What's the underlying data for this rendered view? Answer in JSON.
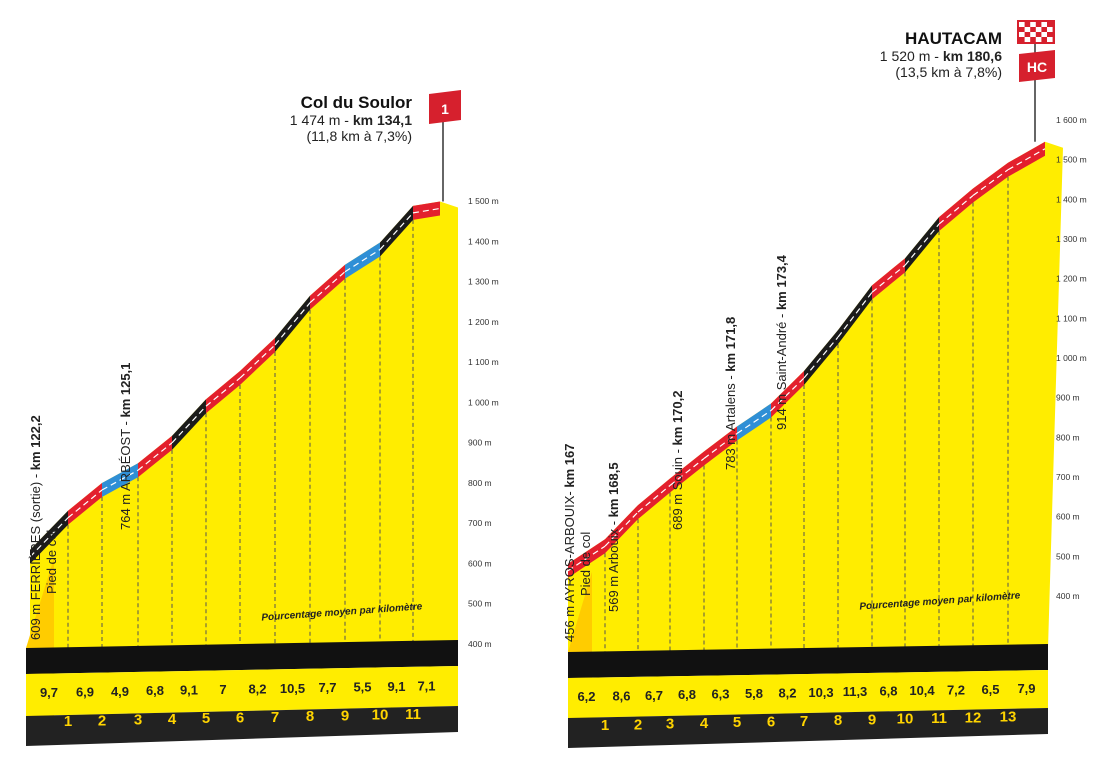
{
  "chart_data": [
    {
      "type": "area",
      "title": "Col du Soulor",
      "summit": {
        "altitude_label": "1 474 m - ",
        "km_label": "km 134,1",
        "stats": "(11,8 km à 7,3%)",
        "category": "1"
      },
      "yaxis": {
        "ylim": [
          400,
          1500
        ],
        "ticks": [
          "400 m",
          "500 m",
          "600 m",
          "700 m",
          "800 m",
          "900 m",
          "1 000 m",
          "1 100 m",
          "1 200 m",
          "1 300 m",
          "1 400 m",
          "1 500 m"
        ]
      },
      "legend": "Pourcentage moyen par kilomètre",
      "km_markers": [
        "1",
        "2",
        "3",
        "4",
        "5",
        "6",
        "7",
        "8",
        "9",
        "10",
        "11"
      ],
      "gradients": [
        "9,7",
        "6,9",
        "4,9",
        "6,8",
        "9,1",
        "7",
        "8,2",
        "10,5",
        "7,7",
        "5,5",
        "9,1",
        "7,1"
      ],
      "segment_colors": [
        "black",
        "red",
        "blue",
        "red",
        "black",
        "red",
        "red",
        "black",
        "red",
        "blue",
        "black",
        "red"
      ],
      "profile_altitude": [
        609,
        706,
        775,
        824,
        892,
        983,
        1053,
        1135,
        1240,
        1317,
        1372,
        1463,
        1474
      ],
      "waypoints": [
        {
          "name": "609 m FERRIÈRES (sortie) - ",
          "km": "km 122,2",
          "note": "Pied de col"
        },
        {
          "name": "764 m ARBÉOST - ",
          "km": "km 125,1",
          "note": ""
        }
      ]
    },
    {
      "type": "area",
      "title": "HAUTACAM",
      "summit": {
        "altitude_label": "1 520 m - ",
        "km_label": "km 180,6",
        "stats": "(13,5 km à 7,8%)",
        "category": "HC"
      },
      "yaxis": {
        "ylim": [
          400,
          1600
        ],
        "ticks": [
          "400 m",
          "500 m",
          "600 m",
          "700 m",
          "800 m",
          "900 m",
          "1 000 m",
          "1 100 m",
          "1 200 m",
          "1 300 m",
          "1 400 m",
          "1 500 m",
          "1 600 m"
        ]
      },
      "legend": "Pourcentage moyen par kilomètre",
      "km_markers": [
        "1",
        "2",
        "3",
        "4",
        "5",
        "6",
        "7",
        "8",
        "9",
        "10",
        "11",
        "12",
        "13"
      ],
      "gradients": [
        "6,2",
        "8,6",
        "6,7",
        "6,8",
        "6,3",
        "5,8",
        "8,2",
        "10,3",
        "11,3",
        "6,8",
        "10,4",
        "7,2",
        "6,5",
        "7,9"
      ],
      "segment_colors": [
        "red",
        "red",
        "red",
        "red",
        "red",
        "blue",
        "red",
        "black",
        "black",
        "red",
        "black",
        "red",
        "red",
        "red"
      ],
      "profile_altitude": [
        456,
        518,
        604,
        671,
        739,
        802,
        860,
        942,
        1045,
        1158,
        1226,
        1330,
        1402,
        1467,
        1520
      ],
      "waypoints": [
        {
          "name": "456 m AYROS-ARBOUIX- ",
          "km": "km 167",
          "note": "Pied de col"
        },
        {
          "name": "569 m Arbouix - ",
          "km": "km 168,5",
          "note": ""
        },
        {
          "name": "689 m Souin - ",
          "km": "km 170,2",
          "note": ""
        },
        {
          "name": "783 m Artalens - ",
          "km": "km 171,8",
          "note": ""
        },
        {
          "name": "914 m Saint-André - ",
          "km": "km 173,4",
          "note": ""
        }
      ]
    }
  ],
  "colors": {
    "yellow": "#ffed00",
    "red": "#e3202d",
    "black": "#1b1b1b",
    "blue": "#2f8fd6",
    "base": "#222222",
    "base_accent": "#ffd400"
  }
}
